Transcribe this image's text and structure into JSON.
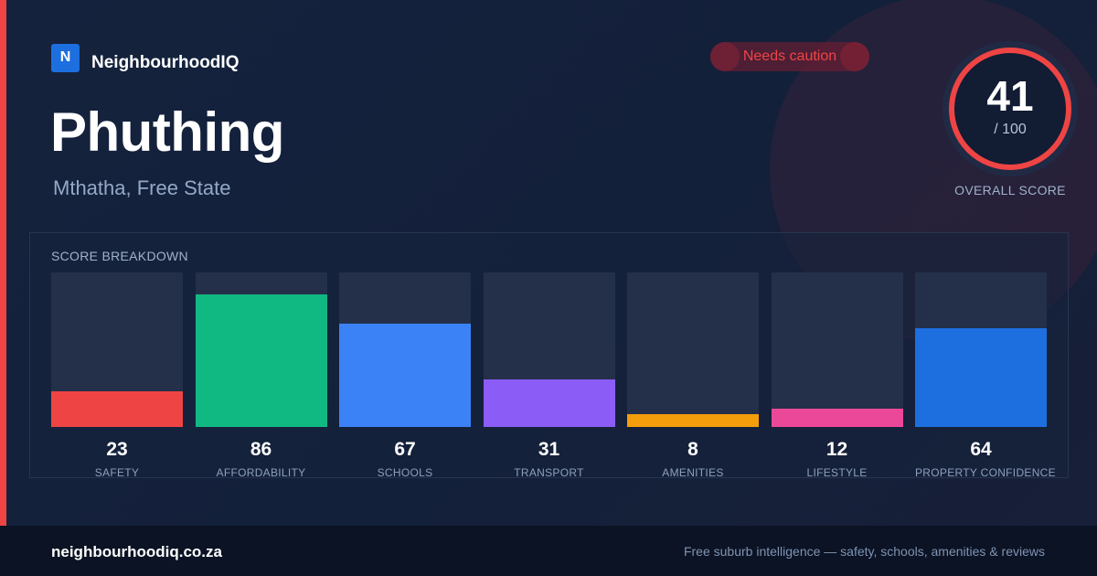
{
  "brand": {
    "logo_letter": "N",
    "name": "NeighbourhoodIQ",
    "logo_color": "#1d6fe0"
  },
  "badge": {
    "label": "Needs caution",
    "color": "#ef4444"
  },
  "suburb": {
    "name": "Phuthing",
    "location": "Mthatha, Free State"
  },
  "overall": {
    "score": "41",
    "max_label": "/ 100",
    "caption": "OVERALL SCORE",
    "score_value": 41,
    "ring_color": "#ef4444"
  },
  "breakdown": {
    "title": "SCORE BREAKDOWN",
    "items": [
      {
        "label": "SAFETY",
        "value": "23",
        "score": 23,
        "color": "#ef4444"
      },
      {
        "label": "AFFORDABILITY",
        "value": "86",
        "score": 86,
        "color": "#10b981"
      },
      {
        "label": "SCHOOLS",
        "value": "67",
        "score": 67,
        "color": "#3b82f6"
      },
      {
        "label": "TRANSPORT",
        "value": "31",
        "score": 31,
        "color": "#8b5cf6"
      },
      {
        "label": "AMENITIES",
        "value": "8",
        "score": 8,
        "color": "#f59e0b"
      },
      {
        "label": "LIFESTYLE",
        "value": "12",
        "score": 12,
        "color": "#ec4899"
      },
      {
        "label": "PROPERTY CONFIDENCE",
        "value": "64",
        "score": 64,
        "color": "#1d6fe0"
      }
    ]
  },
  "footer": {
    "domain": "neighbourhoodiq.co.za",
    "tagline": "Free suburb intelligence — safety, schools, amenities & reviews"
  },
  "colors": {
    "accent": "#ef4444",
    "background": "#14213a",
    "footer_bg": "#0b1324"
  }
}
